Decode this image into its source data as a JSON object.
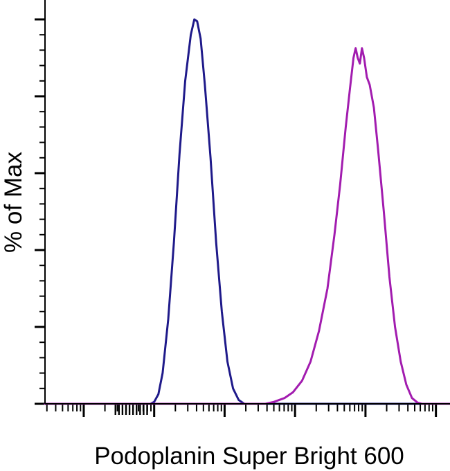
{
  "chart_data": {
    "type": "line",
    "xlabel": "Podoplanin Super Bright 600",
    "ylabel": "% of Max",
    "x_scale": "biexponential",
    "ylim": [
      0,
      100
    ],
    "y_tick_labels_shown": false,
    "x_tick_labels_shown": false,
    "grid": false,
    "legend": "none",
    "colors": {
      "control": "#1f1a8a",
      "stained": "#a21caf",
      "axis": "#000000"
    },
    "series": [
      {
        "color": "#1f1a8a",
        "points": [
          [
            -1.55,
            0
          ],
          [
            -0.05,
            0
          ],
          [
            0.0,
            0.5
          ],
          [
            0.06,
            2.5
          ],
          [
            0.12,
            8
          ],
          [
            0.2,
            22
          ],
          [
            0.28,
            42
          ],
          [
            0.36,
            65
          ],
          [
            0.44,
            84
          ],
          [
            0.52,
            96
          ],
          [
            0.57,
            100
          ],
          [
            0.61,
            99.5
          ],
          [
            0.66,
            95
          ],
          [
            0.72,
            83
          ],
          [
            0.8,
            64
          ],
          [
            0.88,
            42
          ],
          [
            0.96,
            24
          ],
          [
            1.04,
            11
          ],
          [
            1.12,
            4
          ],
          [
            1.2,
            1
          ],
          [
            1.28,
            0
          ],
          [
            4.2,
            0
          ]
        ]
      },
      {
        "color": "#a21caf",
        "points": [
          [
            -1.55,
            0
          ],
          [
            1.58,
            0
          ],
          [
            1.7,
            0.5
          ],
          [
            1.85,
            1.5
          ],
          [
            1.97,
            3
          ],
          [
            2.1,
            6
          ],
          [
            2.22,
            11
          ],
          [
            2.34,
            19
          ],
          [
            2.46,
            30
          ],
          [
            2.56,
            44
          ],
          [
            2.64,
            57
          ],
          [
            2.72,
            72
          ],
          [
            2.78,
            82
          ],
          [
            2.83,
            90
          ],
          [
            2.86,
            92.5
          ],
          [
            2.89,
            90
          ],
          [
            2.92,
            88.5
          ],
          [
            2.95,
            92.5
          ],
          [
            2.98,
            90
          ],
          [
            3.02,
            85
          ],
          [
            3.06,
            83
          ],
          [
            3.12,
            77
          ],
          [
            3.18,
            66
          ],
          [
            3.26,
            50
          ],
          [
            3.34,
            33
          ],
          [
            3.42,
            20
          ],
          [
            3.5,
            11
          ],
          [
            3.58,
            5
          ],
          [
            3.66,
            1.5
          ],
          [
            3.74,
            0.3
          ],
          [
            3.8,
            0
          ],
          [
            4.2,
            0
          ]
        ]
      }
    ]
  }
}
